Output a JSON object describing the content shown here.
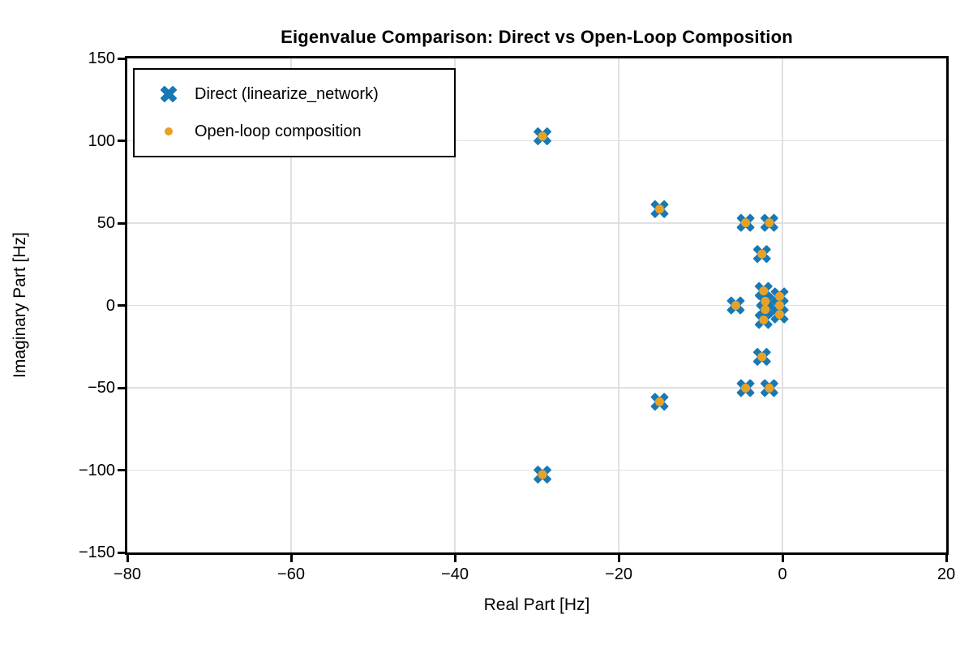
{
  "title": "Eigenvalue Comparison: Direct vs Open-Loop Composition",
  "chart_data": {
    "type": "scatter",
    "title": "Eigenvalue Comparison: Direct vs Open-Loop Composition",
    "xlabel": "Real Part [Hz]",
    "ylabel": "Imaginary Part [Hz]",
    "xlim": [
      -80,
      20
    ],
    "ylim": [
      -150,
      150
    ],
    "x_ticks": [
      -80,
      -60,
      -40,
      -20,
      0,
      20
    ],
    "y_ticks": [
      -150,
      -100,
      -50,
      0,
      50,
      100,
      150
    ],
    "grid": true,
    "grid_color": "#e0e0e0",
    "legend_position": "upper left",
    "series": [
      {
        "name": "Direct (linearize_network)",
        "marker": "X",
        "color": "#1878b4",
        "points": [
          [
            -29.3,
            102.7
          ],
          [
            -29.3,
            -102.7
          ],
          [
            -15.0,
            58.5
          ],
          [
            -15.0,
            -58.5
          ],
          [
            -4.5,
            50.2
          ],
          [
            -4.5,
            -50.2
          ],
          [
            -1.6,
            50.2
          ],
          [
            -1.6,
            -50.2
          ],
          [
            -2.5,
            31.2
          ],
          [
            -2.5,
            -31.2
          ],
          [
            -5.7,
            0.0
          ],
          [
            -2.3,
            8.8
          ],
          [
            -2.3,
            -8.8
          ],
          [
            -2.1,
            2.5
          ],
          [
            -2.1,
            -2.5
          ],
          [
            -0.35,
            5.5
          ],
          [
            -0.35,
            0.0
          ],
          [
            -0.35,
            -5.5
          ]
        ]
      },
      {
        "name": "Open-loop composition",
        "marker": "circle",
        "color": "#e6a227",
        "points": [
          [
            -29.3,
            102.7
          ],
          [
            -29.3,
            -102.7
          ],
          [
            -15.0,
            58.5
          ],
          [
            -15.0,
            -58.5
          ],
          [
            -4.5,
            50.2
          ],
          [
            -4.5,
            -50.2
          ],
          [
            -1.6,
            50.2
          ],
          [
            -1.6,
            -50.2
          ],
          [
            -2.5,
            31.2
          ],
          [
            -2.5,
            -31.2
          ],
          [
            -5.7,
            0.0
          ],
          [
            -2.3,
            8.8
          ],
          [
            -2.3,
            -8.8
          ],
          [
            -2.1,
            2.5
          ],
          [
            -2.1,
            -2.5
          ],
          [
            -0.35,
            5.5
          ],
          [
            -0.35,
            0.0
          ],
          [
            -0.35,
            -5.5
          ]
        ]
      }
    ]
  }
}
